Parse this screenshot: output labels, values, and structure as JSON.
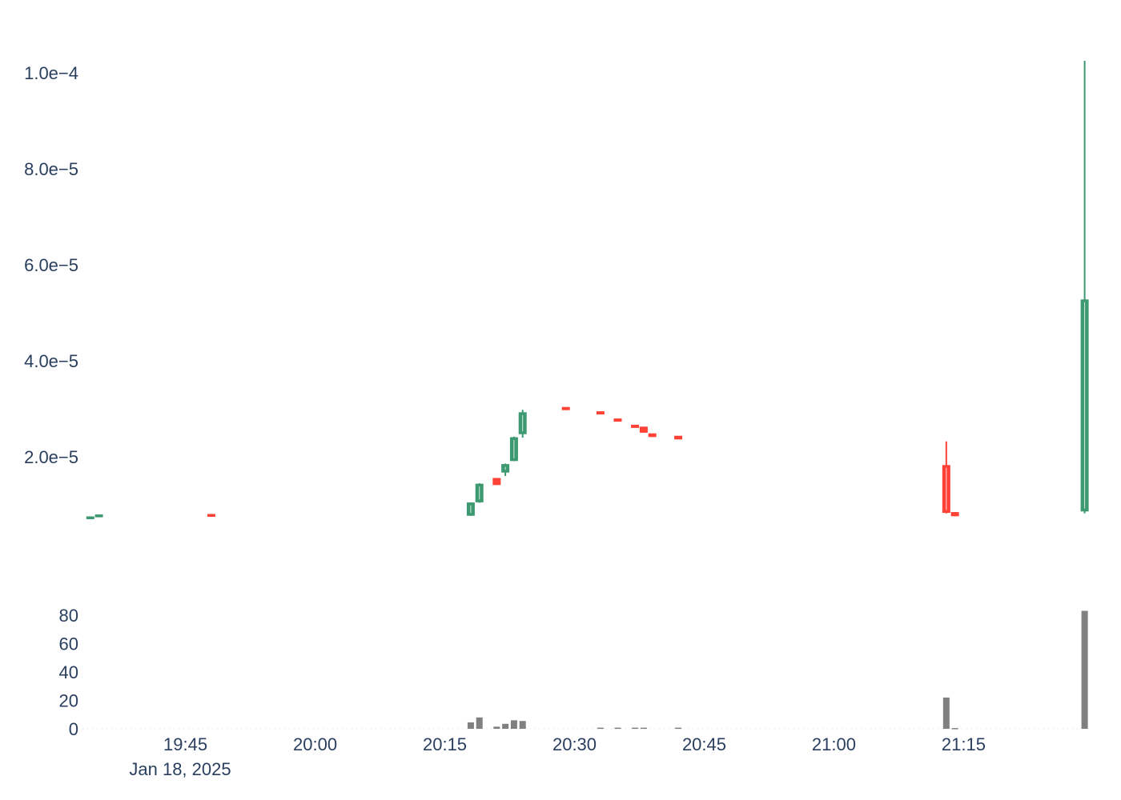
{
  "chart_data": [
    {
      "type": "candlestick",
      "colors": {
        "increasing": "#3d9970",
        "decreasing": "#ff4136"
      },
      "ylim": [
        3.5e-06,
        0.0001085
      ],
      "y_ticks": [
        {
          "value": 2e-05,
          "label": "2.0e−5"
        },
        {
          "value": 4e-05,
          "label": "4.0e−5"
        },
        {
          "value": 6e-05,
          "label": "6.0e−5"
        },
        {
          "value": 8e-05,
          "label": "8.0e−5"
        },
        {
          "value": 0.0001,
          "label": "1.0e−4"
        }
      ],
      "candles": [
        {
          "t": "19:34",
          "open": 7.4e-06,
          "high": 7.6e-06,
          "low": 7.3e-06,
          "close": 7.5e-06
        },
        {
          "t": "19:35",
          "open": 7.8e-06,
          "high": 8e-06,
          "low": 7.7e-06,
          "close": 7.9e-06
        },
        {
          "t": "19:48",
          "open": 8e-06,
          "high": 8.1e-06,
          "low": 7.6e-06,
          "close": 7.7e-06
        },
        {
          "t": "20:18",
          "open": 7.8e-06,
          "high": 1.05e-05,
          "low": 7.7e-06,
          "close": 1.04e-05
        },
        {
          "t": "20:19",
          "open": 1.06e-05,
          "high": 1.45e-05,
          "low": 1.04e-05,
          "close": 1.43e-05
        },
        {
          "t": "20:21",
          "open": 1.55e-05,
          "high": 1.56e-05,
          "low": 1.41e-05,
          "close": 1.42e-05
        },
        {
          "t": "20:22",
          "open": 1.68e-05,
          "high": 1.86e-05,
          "low": 1.6e-05,
          "close": 1.84e-05
        },
        {
          "t": "20:23",
          "open": 1.92e-05,
          "high": 2.42e-05,
          "low": 1.91e-05,
          "close": 2.4e-05
        },
        {
          "t": "20:24",
          "open": 2.48e-05,
          "high": 2.98e-05,
          "low": 2.4e-05,
          "close": 2.92e-05
        },
        {
          "t": "20:29",
          "open": 3.03e-05,
          "high": 3.03e-05,
          "low": 2.98e-05,
          "close": 2.98e-05
        },
        {
          "t": "20:33",
          "open": 2.94e-05,
          "high": 2.94e-05,
          "low": 2.89e-05,
          "close": 2.89e-05
        },
        {
          "t": "20:35",
          "open": 2.79e-05,
          "high": 2.79e-05,
          "low": 2.74e-05,
          "close": 2.74e-05
        },
        {
          "t": "20:37",
          "open": 2.66e-05,
          "high": 2.66e-05,
          "low": 2.61e-05,
          "close": 2.61e-05
        },
        {
          "t": "20:38",
          "open": 2.62e-05,
          "high": 2.62e-05,
          "low": 2.5e-05,
          "close": 2.51e-05
        },
        {
          "t": "20:39",
          "open": 2.48e-05,
          "high": 2.48e-05,
          "low": 2.42e-05,
          "close": 2.42e-05
        },
        {
          "t": "20:42",
          "open": 2.43e-05,
          "high": 2.43e-05,
          "low": 2.37e-05,
          "close": 2.37e-05
        },
        {
          "t": "21:13",
          "open": 1.82e-05,
          "high": 2.32e-05,
          "low": 8.2e-06,
          "close": 8.4e-06
        },
        {
          "t": "21:14",
          "open": 8.4e-06,
          "high": 8.5e-06,
          "low": 7.6e-06,
          "close": 7.7e-06
        },
        {
          "t": "21:29",
          "open": 8.7e-06,
          "high": 0.0001025,
          "low": 8.2e-06,
          "close": 5.27e-05
        }
      ]
    },
    {
      "type": "bar",
      "color": "#808080",
      "ylim": [
        0,
        85
      ],
      "y_ticks": [
        {
          "value": 0,
          "label": "0"
        },
        {
          "value": 20,
          "label": "20"
        },
        {
          "value": 40,
          "label": "40"
        },
        {
          "value": 60,
          "label": "60"
        },
        {
          "value": 80,
          "label": "80"
        }
      ],
      "bars": [
        {
          "t": "19:34",
          "value": 0
        },
        {
          "t": "19:35",
          "value": 0
        },
        {
          "t": "19:48",
          "value": 0
        },
        {
          "t": "20:18",
          "value": 4.5
        },
        {
          "t": "20:19",
          "value": 8
        },
        {
          "t": "20:21",
          "value": 1.5
        },
        {
          "t": "20:22",
          "value": 3.5
        },
        {
          "t": "20:23",
          "value": 6
        },
        {
          "t": "20:24",
          "value": 5.5
        },
        {
          "t": "20:29",
          "value": 0
        },
        {
          "t": "20:33",
          "value": 0.8
        },
        {
          "t": "20:35",
          "value": 0.8
        },
        {
          "t": "20:37",
          "value": 0.8
        },
        {
          "t": "20:38",
          "value": 0.8
        },
        {
          "t": "20:39",
          "value": 0
        },
        {
          "t": "20:42",
          "value": 0.8
        },
        {
          "t": "21:13",
          "value": 22
        },
        {
          "t": "21:14",
          "value": 0.5
        },
        {
          "t": "21:29",
          "value": 83
        }
      ]
    }
  ],
  "x_axis": {
    "range": [
      "19:33",
      "21:29.5"
    ],
    "ticks": [
      {
        "t": "19:45",
        "label": "19:45"
      },
      {
        "t": "20:00",
        "label": "20:00"
      },
      {
        "t": "20:15",
        "label": "20:15"
      },
      {
        "t": "20:30",
        "label": "20:30"
      },
      {
        "t": "20:45",
        "label": "20:45"
      },
      {
        "t": "21:00",
        "label": "21:00"
      },
      {
        "t": "21:15",
        "label": "21:15"
      }
    ],
    "date_label": "Jan 18, 2025"
  }
}
